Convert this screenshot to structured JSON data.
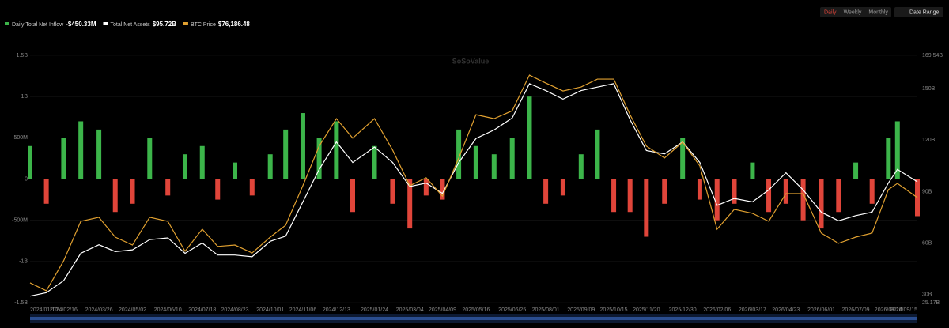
{
  "chart_data": {
    "type": "bar-line",
    "buttons": [
      "Daily",
      "Weekly",
      "Monthly"
    ],
    "active_button": "Daily",
    "date_range": "Date Range",
    "watermark": "SoSoValue",
    "x": [
      "2024/01/10",
      "2024/01/28",
      "2024/02/16",
      "2024/03/06",
      "2024/03/26",
      "2024/04/13",
      "2024/05/02",
      "2024/05/21",
      "2024/06/10",
      "2024/06/29",
      "2024/07/18",
      "2024/08/04",
      "2024/08/23",
      "2024/09/11",
      "2024/10/01",
      "2024/10/18",
      "2024/11/06",
      "2024/11/24",
      "2024/12/13",
      "2024/12/31",
      "2025/01/24",
      "2025/02/13",
      "2025/03/04",
      "2025/03/22",
      "2025/04/09",
      "2025/04/27",
      "2025/05/16",
      "2025/06/05",
      "2025/06/25",
      "2025/07/14",
      "2025/08/01",
      "2025/08/20",
      "2025/09/09",
      "2025/09/27",
      "2025/10/15",
      "2025/11/02",
      "2025/11/20",
      "2025/12/10",
      "2025/12/30",
      "2026/01/18",
      "2026/02/06",
      "2026/02/25",
      "2026/03/17",
      "2026/04/04",
      "2026/04/23",
      "2026/05/12",
      "2026/06/01",
      "2026/06/20",
      "2026/07/09",
      "2026/07/27",
      "2026/08/14",
      "2026/08/24",
      "2026/09/15"
    ],
    "xlim": [
      "2024/01/10",
      "2026/09/15"
    ],
    "xticks": [
      "2024/01/10",
      "2024/02/16",
      "2024/03/26",
      "2024/05/02",
      "2024/06/10",
      "2024/07/18",
      "2024/08/23",
      "2024/10/01",
      "2024/11/06",
      "2024/12/13",
      "2025/01/24",
      "2025/03/04",
      "2025/04/09",
      "2025/05/16",
      "2025/06/25",
      "2025/08/01",
      "2025/09/09",
      "2025/10/15",
      "2025/11/20",
      "2025/12/30",
      "2026/02/06",
      "2026/03/17",
      "2026/04/23",
      "2026/06/01",
      "2026/07/09",
      "2026/08/14",
      "2026/09/15"
    ],
    "ylim": [
      -1500,
      1500
    ],
    "yticks": [
      {
        "value": 1500,
        "label": "1.5B"
      },
      {
        "value": 1000,
        "label": "1B"
      },
      {
        "value": 500,
        "label": "500M"
      },
      0,
      {
        "value": -500,
        "label": "-500M"
      },
      {
        "value": -1000,
        "label": "-1B"
      },
      {
        "value": -1500,
        "label": "-1.5B"
      }
    ],
    "y2lim": [
      25.17,
      169.54
    ],
    "y2ticks": [
      {
        "value": 169.54,
        "label": "169.54B"
      },
      {
        "value": 150,
        "label": "150B"
      },
      {
        "value": 120,
        "label": "120B"
      },
      {
        "value": 90,
        "label": "90B"
      },
      {
        "value": 60,
        "label": "60B"
      },
      {
        "value": 30,
        "label": "30B"
      },
      {
        "value": 25.17,
        "label": "25.17B"
      }
    ],
    "y3lim": [
      39000,
      126500
    ],
    "positive_color": "#3cb54a",
    "negative_color": "#e0453a",
    "series": [
      {
        "name": "Daily Total Net Inflow",
        "latest": "-$450.33M",
        "kind": "bar",
        "color": "#3cb54a",
        "values": [
          400,
          -300,
          500,
          700,
          600,
          -400,
          -300,
          500,
          -200,
          300,
          400,
          -250,
          200,
          -200,
          300,
          600,
          800,
          500,
          700,
          -400,
          400,
          -300,
          -600,
          -200,
          -250,
          600,
          400,
          300,
          500,
          1000,
          -300,
          -200,
          300,
          600,
          -400,
          -400,
          -700,
          -300,
          500,
          -250,
          -500,
          -300,
          200,
          -400,
          -300,
          -500,
          -600,
          -400,
          200,
          -300,
          500,
          700,
          -450.33
        ]
      },
      {
        "name": "Total Net Assets",
        "latest": "$95.72B",
        "kind": "line",
        "axis": "y2",
        "color": "#ffffff",
        "values": [
          29,
          31,
          38,
          54,
          59,
          55,
          56,
          62,
          63,
          54,
          60,
          53,
          53,
          52,
          61,
          64,
          84,
          103,
          119,
          107,
          116,
          107,
          93,
          95,
          89,
          107,
          121,
          126,
          133,
          153,
          149,
          144,
          149,
          151,
          153,
          132,
          114,
          112,
          119,
          107,
          82,
          86,
          84,
          91,
          101,
          91,
          78,
          73,
          76,
          78,
          95,
          103,
          95.72
        ]
      },
      {
        "name": "BTC Price",
        "latest": "$76,186.48",
        "kind": "line",
        "axis": "y3",
        "color": "#e0a030",
        "values": [
          46000,
          43200,
          53800,
          67800,
          69200,
          62200,
          59400,
          69200,
          67800,
          57200,
          65000,
          58900,
          59400,
          56600,
          62200,
          66400,
          80400,
          94400,
          104100,
          97200,
          104100,
          93000,
          80400,
          83200,
          76700,
          90200,
          105500,
          104100,
          106900,
          119500,
          116700,
          113900,
          115300,
          118100,
          118100,
          105500,
          94400,
          90200,
          95800,
          87400,
          65000,
          72000,
          70600,
          67800,
          77600,
          77600,
          63600,
          60000,
          62200,
          63600,
          79000,
          81200,
          76186.48
        ]
      }
    ]
  }
}
